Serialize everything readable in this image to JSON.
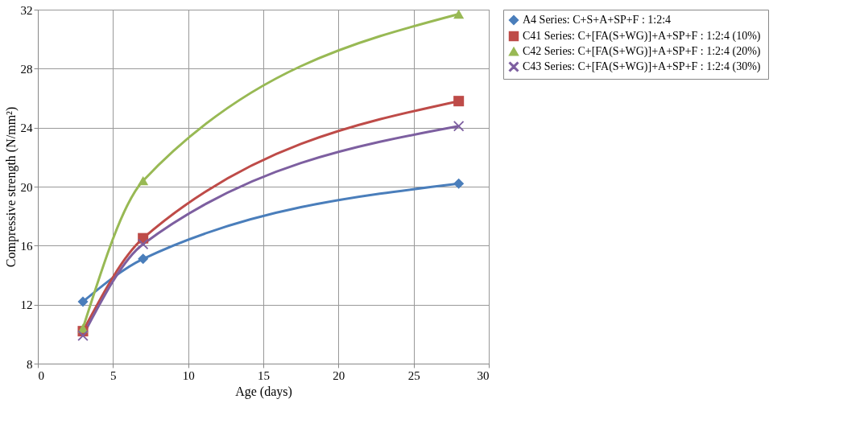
{
  "chart_data": {
    "type": "line",
    "xlabel": "Age (days)",
    "ylabel": "Compressive strength (N/mm²)",
    "xlim": [
      0,
      30
    ],
    "xticks": [
      0,
      5,
      10,
      15,
      20,
      25,
      30
    ],
    "ylim": [
      8,
      32
    ],
    "yticks": [
      8,
      12,
      16,
      20,
      24,
      28,
      32
    ],
    "grid": true,
    "legend": "right",
    "line_style": "solid",
    "series": [
      {
        "name": "A4 Series: C+S+A+SP+F  : 1:2:4",
        "color": "#4a7ebb",
        "marker": "diamond",
        "x": [
          3,
          7,
          28
        ],
        "values": [
          12.2,
          15.1,
          20.2
        ]
      },
      {
        "name": "C41 Series: C+[FA(S+WG)]+A+SP+F  : 1:2:4 (10%)",
        "color": "#be4b48",
        "marker": "square",
        "x": [
          3,
          7,
          28
        ],
        "values": [
          10.2,
          16.5,
          25.8
        ]
      },
      {
        "name": "C42 Series: C+[FA(S+WG)]+A+SP+F  : 1:2:4 (20%)",
        "color": "#98b954",
        "marker": "triangle",
        "x": [
          3,
          7,
          28
        ],
        "values": [
          10.4,
          20.4,
          31.7
        ]
      },
      {
        "name": "C43 Series: C+[FA(S+WG)]+A+SP+F  : 1:2:4 (30%)",
        "color": "#7d5fa0",
        "marker": "cross",
        "x": [
          3,
          7,
          28
        ],
        "values": [
          9.9,
          16.1,
          24.1
        ]
      }
    ]
  }
}
